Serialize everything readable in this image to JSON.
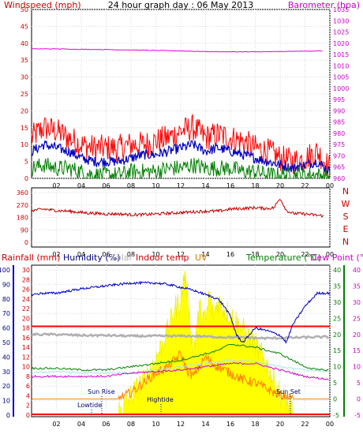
{
  "chart_data": [
    {
      "type": "line",
      "title": "24 hour graph day : 06 May 2013",
      "ylabel": "Windspeed (mph)",
      "y2label": "Barometer (hpa)",
      "ylim": [
        0,
        50
      ],
      "y2lim": [
        960,
        1035
      ],
      "yticks": [
        "0",
        "5",
        "10",
        "15",
        "20",
        "25",
        "30",
        "35",
        "40",
        "45",
        "50"
      ],
      "y2ticks": [
        "960",
        "965",
        "970",
        "975",
        "980",
        "985",
        "990",
        "995",
        "1000",
        "1005",
        "1010",
        "1015",
        "1020",
        "1025",
        "1030",
        "1035"
      ],
      "xlim": [
        0,
        24
      ],
      "xticks": [
        "02",
        "04",
        "06",
        "08",
        "10",
        "12",
        "14",
        "16",
        "18",
        "20",
        "22",
        "00"
      ],
      "colors": {
        "gust": "#ff0000",
        "avg": "#0000c0",
        "speed": "#008000",
        "barometer": "#e000e0",
        "axis_left": "#cc0000",
        "axis_right": "#cc00cc"
      },
      "series": [
        {
          "key": "gust",
          "x": [
            0,
            1,
            2,
            3,
            4,
            5,
            6,
            7,
            8,
            9,
            10,
            11,
            12,
            13,
            14,
            15,
            16,
            17,
            18,
            19,
            20,
            21,
            22,
            23,
            24
          ],
          "values": [
            12,
            15,
            14,
            12,
            10,
            9,
            9,
            9,
            10,
            10,
            11,
            12,
            14,
            15,
            12,
            13,
            12,
            11,
            9,
            8,
            6,
            5,
            6,
            8,
            3
          ]
        },
        {
          "key": "avg",
          "x": [
            0,
            1,
            2,
            3,
            4,
            5,
            6,
            7,
            8,
            9,
            10,
            11,
            12,
            13,
            14,
            15,
            16,
            17,
            18,
            19,
            20,
            21,
            22,
            23,
            24
          ],
          "values": [
            8,
            10,
            9,
            8,
            6,
            5,
            5,
            5,
            6,
            7,
            7,
            8,
            9,
            10,
            8,
            9,
            8,
            7,
            6,
            5,
            4,
            3,
            4,
            5,
            2
          ]
        },
        {
          "key": "speed",
          "x": [
            0,
            1,
            2,
            3,
            4,
            5,
            6,
            7,
            8,
            9,
            10,
            11,
            12,
            13,
            14,
            15,
            16,
            17,
            18,
            19,
            20,
            21,
            22,
            23,
            24
          ],
          "values": [
            3,
            4,
            3,
            3,
            2,
            1,
            1,
            1,
            2,
            2,
            2,
            3,
            3,
            4,
            3,
            3,
            3,
            2,
            2,
            1,
            1,
            1,
            1,
            1,
            0
          ]
        },
        {
          "key": "barometer",
          "axis": "right",
          "x": [
            0,
            2,
            4,
            6,
            8,
            10,
            12,
            14,
            16,
            18,
            20,
            22,
            23.5
          ],
          "values": [
            1017.5,
            1017.5,
            1017.3,
            1017.2,
            1017.0,
            1016.8,
            1016.6,
            1016.3,
            1016.2,
            1016.2,
            1016.3,
            1016.5,
            1016.6
          ]
        }
      ]
    },
    {
      "type": "line",
      "ylim": [
        0,
        360
      ],
      "yticks": [
        "0",
        "90",
        "180",
        "270",
        "360"
      ],
      "compass": [
        "N",
        "W",
        "S",
        "E",
        "N"
      ],
      "xlim": [
        0,
        24
      ],
      "xticks": [
        "02",
        "04",
        "06",
        "08",
        "10",
        "12",
        "14",
        "16",
        "18",
        "20",
        "22",
        "00"
      ],
      "colors": {
        "direction": "#c00000",
        "compass": "#cc0000"
      },
      "series": [
        {
          "key": "direction",
          "x": [
            0,
            1,
            2,
            3,
            4,
            5,
            6,
            7,
            8,
            9,
            10,
            11,
            12,
            13,
            14,
            15,
            16,
            17,
            18,
            19,
            19.5,
            20,
            20.5,
            21,
            22,
            23,
            24
          ],
          "values": [
            230,
            240,
            230,
            225,
            215,
            210,
            205,
            205,
            200,
            200,
            205,
            210,
            215,
            220,
            225,
            225,
            240,
            245,
            250,
            245,
            250,
            320,
            230,
            210,
            205,
            195,
            190
          ]
        }
      ]
    },
    {
      "type": "line",
      "legend": [
        "Rainfall (mm)",
        "Humidity (%)",
        "Solar",
        "Indoor temp",
        "UV",
        "Temperature (°C)",
        "Dew Point (°C)"
      ],
      "yticks_left": [
        "0",
        "10",
        "20",
        "30",
        "40",
        "50",
        "60",
        "70",
        "80",
        "90",
        "100"
      ],
      "yticks_rain": [
        "0",
        "2",
        "4",
        "6",
        "8",
        "10",
        "12",
        "14",
        "16",
        "18",
        "20",
        "22",
        "24",
        "26",
        "28",
        "30"
      ],
      "yticks_temp": [
        "-5",
        "0",
        "5",
        "10",
        "15",
        "20",
        "25",
        "30",
        "35",
        "40"
      ],
      "yticks_right": [
        "-5",
        "0",
        "5",
        "10",
        "15",
        "20",
        "25",
        "30",
        "35",
        "40"
      ],
      "xlim": [
        0,
        24
      ],
      "xticks": [
        "02",
        "04",
        "06",
        "08",
        "10",
        "12",
        "14",
        "16",
        "18",
        "20",
        "22",
        "00"
      ],
      "annotations": [
        "Sun Rise",
        "Lowtide",
        "Hightide",
        "Sun Set"
      ],
      "colors": {
        "humidity": "#0000c0",
        "indoor": "#ff0000",
        "temperature": "#008000",
        "dewpoint": "#d000d0",
        "solar": "#ffff00",
        "uv": "#ff8000",
        "grey": "#b0b0b0",
        "cyan": "#a8e8e8",
        "rain": "#ff0000"
      },
      "series": [
        {
          "key": "humidity",
          "x": [
            0,
            1,
            2,
            4,
            6,
            8,
            9,
            10,
            11,
            12,
            13,
            14,
            15,
            15.5,
            16,
            16.5,
            17,
            18,
            19,
            20,
            20.5,
            21,
            22,
            23,
            24
          ],
          "values": [
            83,
            84,
            84,
            87,
            89,
            91,
            91,
            91,
            90,
            88,
            86,
            83,
            80,
            75,
            68,
            55,
            50,
            60,
            58,
            55,
            50,
            62,
            75,
            84,
            84
          ]
        },
        {
          "key": "indoor",
          "x": [
            0,
            24
          ],
          "values": [
            22.5,
            22.5
          ]
        },
        {
          "key": "grey",
          "x": [
            0,
            2,
            4,
            6,
            8,
            10,
            11,
            13,
            15,
            17,
            19,
            21,
            23,
            24
          ],
          "values": [
            20,
            20,
            19.7,
            19.7,
            19.5,
            19.5,
            19.5,
            19.5,
            19.2,
            19.0,
            18.8,
            19.0,
            19.2,
            19.2
          ]
        },
        {
          "key": "temperature",
          "x": [
            0,
            2,
            4,
            6,
            8,
            10,
            12,
            14,
            15,
            16,
            18,
            19,
            20,
            21,
            22,
            23,
            24
          ],
          "values": [
            9.5,
            9.5,
            9,
            9,
            10,
            11,
            12,
            14,
            15,
            17,
            16,
            15,
            14,
            12,
            10,
            9,
            9
          ]
        },
        {
          "key": "cyan",
          "x": [
            0,
            2,
            4,
            6,
            8,
            10,
            12,
            14,
            16,
            18,
            20,
            22,
            24
          ],
          "values": [
            8,
            8.5,
            8,
            8,
            8,
            9,
            10,
            11,
            12,
            11.5,
            10,
            9,
            8.5
          ]
        },
        {
          "key": "dewpoint",
          "x": [
            0,
            2,
            4,
            6,
            8,
            10,
            12,
            14,
            16,
            18,
            20,
            22,
            24
          ],
          "values": [
            7,
            7,
            7,
            7,
            8,
            8.5,
            9,
            10,
            11,
            11,
            9,
            7,
            6
          ]
        },
        {
          "key": "solar",
          "x": [
            0,
            7,
            7.5,
            8,
            9,
            10,
            11,
            11.5,
            12,
            12.3,
            12.6,
            13,
            13.5,
            14,
            14.3,
            14.6,
            15,
            15.5,
            16,
            16.5,
            17,
            18,
            19,
            20,
            21,
            24
          ],
          "values": [
            0,
            0,
            3,
            10,
            20,
            35,
            55,
            70,
            75,
            95,
            75,
            40,
            70,
            60,
            80,
            65,
            75,
            70,
            65,
            60,
            55,
            45,
            30,
            10,
            0,
            0
          ]
        },
        {
          "key": "uv",
          "x": [
            0,
            7,
            8,
            9,
            10,
            11,
            12,
            12.5,
            13,
            14,
            14.5,
            15,
            16,
            17,
            18,
            19,
            20,
            21,
            24
          ],
          "values": [
            0,
            0,
            2,
            5,
            8,
            10,
            14,
            9,
            7,
            13,
            11,
            10,
            8,
            6,
            5,
            3,
            1,
            0,
            0
          ]
        },
        {
          "key": "rain",
          "x": [
            0,
            24
          ],
          "values": [
            0.3,
            0.3
          ]
        }
      ]
    }
  ]
}
